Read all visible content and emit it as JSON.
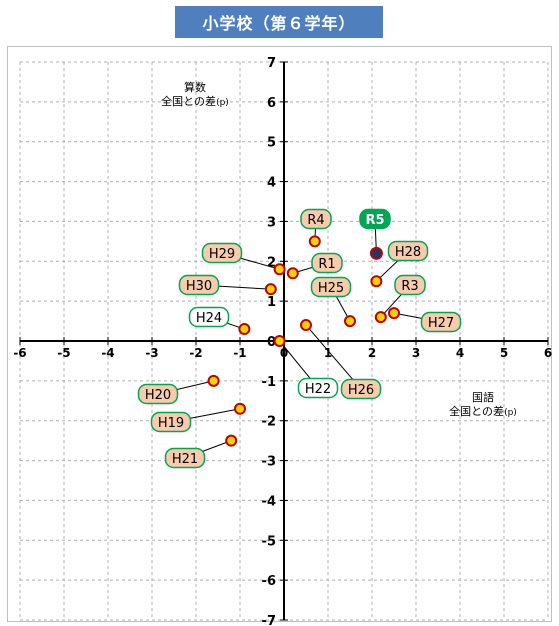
{
  "header": {
    "title": "小学校（第６学年）"
  },
  "chart_data": {
    "type": "scatter",
    "title": "小学校（第６学年）",
    "xlabel_line1": "国語",
    "xlabel_line2": "全国との差",
    "ylabel_line1": "算数",
    "ylabel_line2": "全国との差",
    "unit": "(p)",
    "xlim": [
      -6,
      6
    ],
    "ylim": [
      -7,
      7
    ],
    "xticks": [
      -6,
      -5,
      -4,
      -3,
      -2,
      -1,
      0,
      1,
      2,
      3,
      4,
      5,
      6
    ],
    "yticks": [
      -7,
      -6,
      -5,
      -4,
      -3,
      -2,
      -1,
      0,
      1,
      2,
      3,
      4,
      5,
      6,
      7
    ],
    "grid": true,
    "points": [
      {
        "label": "H19",
        "x": -1.0,
        "y": -1.7
      },
      {
        "label": "H20",
        "x": -1.6,
        "y": -1.0
      },
      {
        "label": "H21",
        "x": -1.2,
        "y": -2.5
      },
      {
        "label": "H22",
        "x": -0.1,
        "y": 0.0
      },
      {
        "label": "H24",
        "x": -0.9,
        "y": 0.3
      },
      {
        "label": "H25",
        "x": 1.5,
        "y": 0.5
      },
      {
        "label": "H26",
        "x": 0.5,
        "y": 0.4
      },
      {
        "label": "H27",
        "x": 2.5,
        "y": 0.7
      },
      {
        "label": "H28",
        "x": 2.1,
        "y": 1.5
      },
      {
        "label": "H29",
        "x": -0.1,
        "y": 1.8
      },
      {
        "label": "H30",
        "x": -0.3,
        "y": 1.3
      },
      {
        "label": "R1",
        "x": 0.2,
        "y": 1.7
      },
      {
        "label": "R3",
        "x": 2.2,
        "y": 0.6
      },
      {
        "label": "R4",
        "x": 0.7,
        "y": 2.5
      },
      {
        "label": "R5",
        "x": 2.1,
        "y": 2.2,
        "highlight": true
      }
    ],
    "colors": {
      "title_bg": "#4f7fbd",
      "point_fill": "#ffd100",
      "point_border": "#c00000",
      "label_fill": "#f8cbad",
      "label_fill_plain": "#ffffff",
      "label_border": "#00a651",
      "highlight_fill": "#00a651",
      "highlight_point": "#1f3864"
    }
  }
}
